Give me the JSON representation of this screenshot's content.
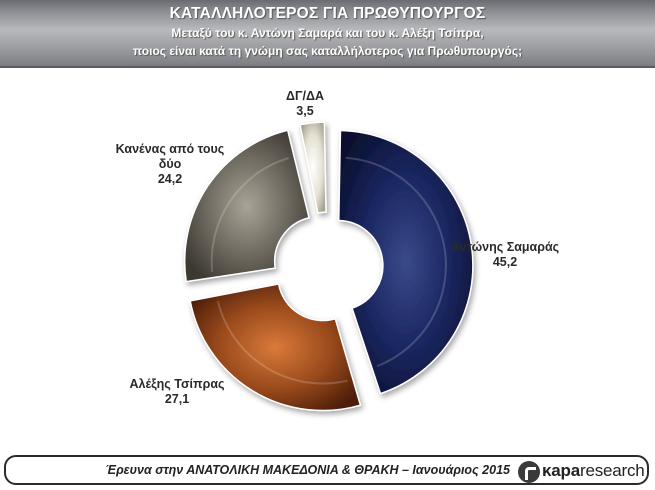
{
  "header": {
    "title": "ΚΑΤΑΛΛΗΛΟΤΕΡΟΣ ΓΙΑ ΠΡΩΘΥΠΟΥΡΓΟΣ",
    "subtitle_line1": "Μεταξύ του κ. Αντώνη Σαμαρά και του κ. Αλέξη Τσίπρα,",
    "subtitle_line2": "ποιος είναι κατά τη γνώμη σας καταλλήλοτερος για Πρωθυπουργός;"
  },
  "chart_data": {
    "type": "pie",
    "subtype": "donut",
    "title": "ΚΑΤΑΛΛΗΛΟΤΕΡΟΣ ΓΙΑ ΠΡΩΘΥΠΟΥΡΓΟΣ",
    "slices": [
      {
        "label": "Αντώνης Σαμαράς",
        "value": 45.2,
        "value_text": "45,2",
        "color": "#0f1a4a"
      },
      {
        "label": "Αλέξης Τσίπρας",
        "value": 27.1,
        "value_text": "27,1",
        "color": "#7a3510"
      },
      {
        "label": "Κανένας από τους δύο",
        "label_line1": "Κανένας από τους",
        "label_line2": "δύο",
        "value": 24.2,
        "value_text": "24,2",
        "color": "#5e5a52"
      },
      {
        "label": "ΔΓ/ΔΑ",
        "value": 3.5,
        "value_text": "3,5",
        "color": "#d9d6c6"
      }
    ]
  },
  "footer": {
    "text": "Έρευνα στην ΑΝΑΤΟΛΙΚΗ ΜΑΚΕΔΟΝΙΑ & ΘΡΑΚΗ – Ιανουάριος 2015",
    "brand_bold": "κapa",
    "brand_light": "research"
  }
}
